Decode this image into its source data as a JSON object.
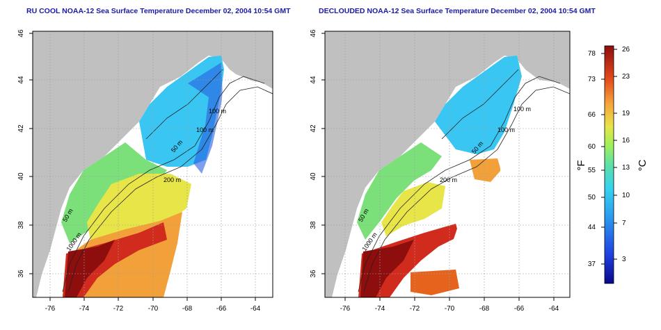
{
  "panels": [
    {
      "title": "RU COOL NOAA-12 Sea Surface Temperature December 02, 2004 10:54 GMT"
    },
    {
      "title": "DECLOUDED NOAA-12 Sea Surface Temperature December 02, 2004 10:54 GMT"
    }
  ],
  "axes": {
    "x_ticks": [
      "-76",
      "-74",
      "-72",
      "-70",
      "-68",
      "-66",
      "-64"
    ],
    "y_ticks": [
      "36",
      "38",
      "40",
      "42",
      "44",
      "46"
    ],
    "lon_range": [
      -77.2,
      -62.7
    ],
    "lat_range": [
      35.0,
      46.0
    ]
  },
  "contour_labels": [
    "100 m",
    "100 m",
    "50 m",
    "200 m",
    "50 m",
    "1000 m"
  ],
  "colorbar": {
    "fahrenheit_ticks": [
      "78",
      "73",
      "66",
      "60",
      "55",
      "50",
      "44",
      "37"
    ],
    "celsius_ticks": [
      "26",
      "23",
      "19",
      "16",
      "13",
      "10",
      "7",
      "3"
    ],
    "fahrenheit_unit": "°F",
    "celsius_unit": "°C",
    "range_c": [
      0,
      26.5
    ]
  },
  "colors": {
    "land": "#c0c0c0",
    "title": "#1a1aa8",
    "grid": "#a0a0a0"
  }
}
